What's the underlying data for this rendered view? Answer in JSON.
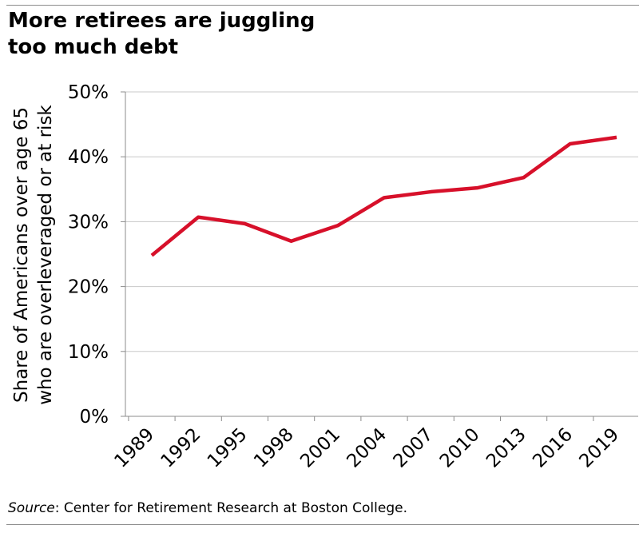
{
  "title_lines": [
    "More retirees are juggling",
    "too much debt"
  ],
  "source": {
    "label": "Source",
    "text": ": Center for Retirement Research at Boston College."
  },
  "chart_data": {
    "type": "line",
    "title": "More retirees are juggling too much debt",
    "xlabel": "",
    "ylabel_lines": [
      "Share of Americans over age 65",
      "who are overleveraged or at risk"
    ],
    "categories": [
      "1989",
      "1992",
      "1995",
      "1998",
      "2001",
      "2004",
      "2007",
      "2010",
      "2013",
      "2016",
      "2019"
    ],
    "series": [
      {
        "values": [
          24.8,
          30.7,
          29.7,
          27.0,
          29.4,
          33.7,
          34.6,
          35.2,
          36.8,
          42.0,
          43.0
        ],
        "color": "#d7102a"
      }
    ],
    "ylim": [
      0,
      50
    ],
    "yticks": [
      0,
      10,
      20,
      30,
      40,
      50
    ],
    "ytick_labels": [
      "0%",
      "10%",
      "20%",
      "30%",
      "40%",
      "50%"
    ],
    "grid": true,
    "gridline_color": "#c8c8c8"
  }
}
